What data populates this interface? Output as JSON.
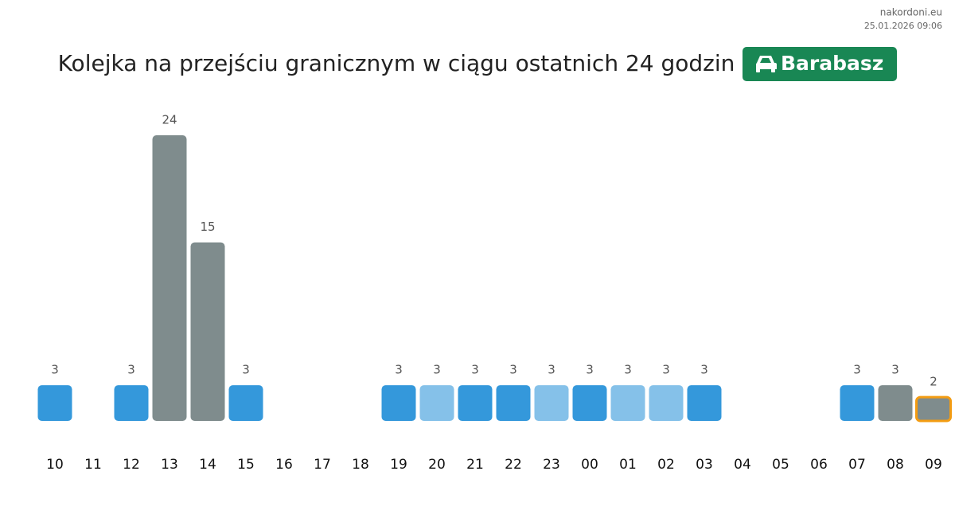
{
  "chart_data": {
    "type": "bar",
    "source": "nakordoni.eu",
    "timestamp": "25.01.2026 09:06",
    "title": "Kolejka na przejściu granicznym w ciągu ostatnich 24 godzin",
    "badge": "Barabasz",
    "categories": [
      "10",
      "11",
      "12",
      "13",
      "14",
      "15",
      "16",
      "17",
      "18",
      "19",
      "20",
      "21",
      "22",
      "23",
      "00",
      "01",
      "02",
      "03",
      "04",
      "05",
      "06",
      "07",
      "08",
      "09"
    ],
    "values": [
      3,
      null,
      3,
      24,
      15,
      3,
      null,
      null,
      null,
      3,
      3,
      3,
      3,
      3,
      3,
      3,
      3,
      3,
      null,
      null,
      null,
      3,
      3,
      2
    ],
    "colors": [
      "#3498db",
      null,
      "#3498db",
      "#7f8c8d",
      "#7f8c8d",
      "#3498db",
      null,
      null,
      null,
      "#3498db",
      "#85c1e9",
      "#3498db",
      "#3498db",
      "#85c1e9",
      "#3498db",
      "#85c1e9",
      "#85c1e9",
      "#3498db",
      null,
      null,
      null,
      "#3498db",
      "#7f8c8d",
      "#7f8c8d"
    ],
    "highlight": "09",
    "highlight_color": "#f39c12",
    "ylim": [
      0,
      24
    ]
  }
}
